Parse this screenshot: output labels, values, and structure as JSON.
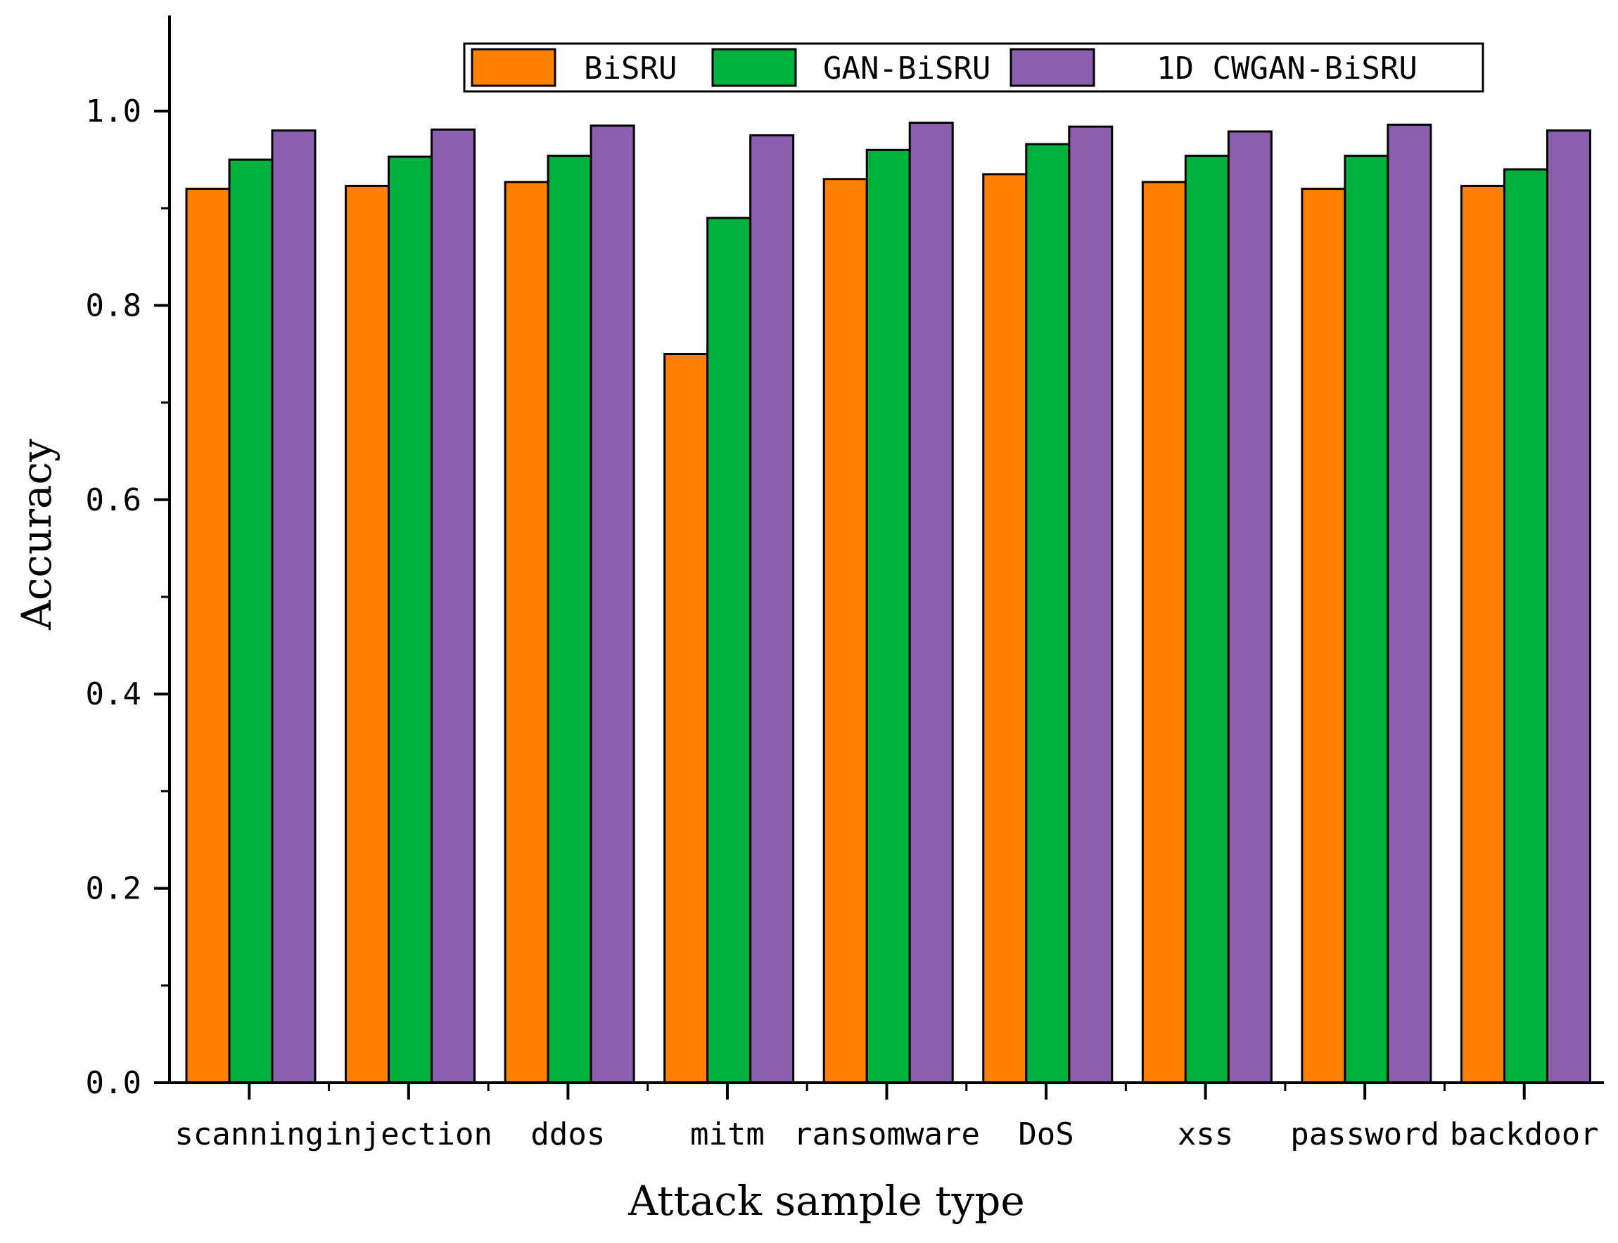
{
  "chart_data": {
    "type": "bar",
    "title": "",
    "xlabel": "Attack sample type",
    "ylabel": "Accuracy",
    "ylim": [
      0,
      1.1
    ],
    "yticks": [
      "0.0",
      "0.2",
      "0.4",
      "0.6",
      "0.8",
      "1.0"
    ],
    "ytick_values": [
      0,
      0.2,
      0.4,
      0.6,
      0.8,
      1.0
    ],
    "grid": false,
    "legend_position": "top-right",
    "categories": [
      "scanning",
      "injection",
      "ddos",
      "mitm",
      "ransomware",
      "DoS",
      "xss",
      "password",
      "backdoor"
    ],
    "series": [
      {
        "name": "BiSRU",
        "color": "#FF8000",
        "values": [
          0.92,
          0.923,
          0.927,
          0.75,
          0.93,
          0.935,
          0.927,
          0.92,
          0.923
        ]
      },
      {
        "name": "GAN-BiSRU",
        "color": "#00B03C",
        "values": [
          0.95,
          0.953,
          0.954,
          0.89,
          0.96,
          0.966,
          0.954,
          0.954,
          0.94
        ]
      },
      {
        "name": "1D CWGAN-BiSRU",
        "color": "#8B5FAE",
        "values": [
          0.98,
          0.981,
          0.985,
          0.975,
          0.988,
          0.984,
          0.979,
          0.986,
          0.98
        ]
      }
    ]
  }
}
